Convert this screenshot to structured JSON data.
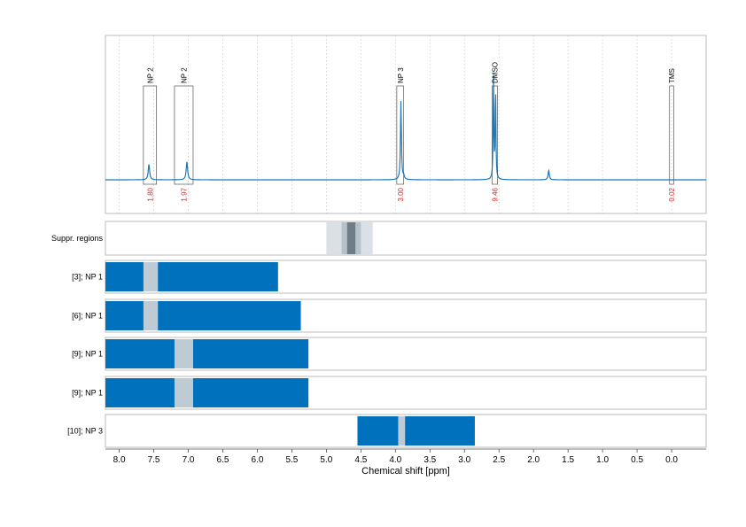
{
  "colors": {
    "spectrum": "#1f77b4",
    "bar": "#0072bd",
    "overlap": "#bfcbd4",
    "region_light": "#d9e0e6",
    "region_mid": "#b6c2ca",
    "region_dark": "#6e7d88",
    "integral_text": "#d62728",
    "frame": "#bbbbbb",
    "grid": "#cccccc"
  },
  "chart_data": {
    "type": "spectrum",
    "xlabel": "Chemical shift [ppm]",
    "xlim": [
      8.2,
      -0.5
    ],
    "x_reversed": true,
    "grid": true,
    "xticks": [
      "8.0",
      "7.5",
      "7.0",
      "6.5",
      "6.0",
      "5.5",
      "5.0",
      "4.5",
      "4.0",
      "3.5",
      "3.0",
      "2.5",
      "2.0",
      "1.5",
      "1.0",
      "0.5",
      "0.0"
    ],
    "spectrum": {
      "baseline": 0.0,
      "peaks": [
        {
          "x": 7.57,
          "height": 0.13,
          "width": 0.012
        },
        {
          "x": 7.02,
          "height": 0.15,
          "width": 0.012
        },
        {
          "x": 3.92,
          "height": 0.66,
          "width": 0.008
        },
        {
          "x": 3.88,
          "height": 0.03,
          "width": 0.01
        },
        {
          "x": 2.58,
          "height": 0.85,
          "width": 0.006
        },
        {
          "x": 2.55,
          "height": 0.8,
          "width": 0.006
        },
        {
          "x": 1.78,
          "height": 0.08,
          "width": 0.01
        }
      ]
    },
    "peak_annotations": [
      {
        "label": "NP 2",
        "from": 7.65,
        "to": 7.46,
        "integral": "1.80"
      },
      {
        "label": "NP 2",
        "from": 7.2,
        "to": 6.93,
        "integral": "1.97"
      },
      {
        "label": "NP 3",
        "from": 3.98,
        "to": 3.88,
        "integral": "3.00"
      },
      {
        "label": "DMSO",
        "from": 2.6,
        "to": 2.52,
        "integral": "9.46"
      },
      {
        "label": "TMS",
        "from": 0.03,
        "to": -0.03,
        "integral": "0.02"
      }
    ],
    "suppression": {
      "label": "Suppr. regions",
      "regions": [
        {
          "from": 5.0,
          "to": 4.33,
          "level": "light"
        },
        {
          "from": 4.78,
          "to": 4.5,
          "level": "mid"
        },
        {
          "from": 4.7,
          "to": 4.58,
          "level": "dark"
        }
      ]
    },
    "rows": [
      {
        "label": "[3]; NP 1",
        "from": 8.2,
        "to": 5.7,
        "overlap": [
          7.65,
          7.44
        ]
      },
      {
        "label": "[6]; NP 1",
        "from": 8.2,
        "to": 5.37,
        "overlap": [
          7.65,
          7.44
        ]
      },
      {
        "label": "[9]; NP 1",
        "from": 8.2,
        "to": 5.26,
        "overlap": [
          7.2,
          6.93
        ]
      },
      {
        "label": "[9]; NP 1",
        "from": 8.2,
        "to": 5.26,
        "overlap": [
          7.2,
          6.93
        ]
      },
      {
        "label": "[10]; NP 3",
        "from": 4.55,
        "to": 2.85,
        "overlap": [
          3.96,
          3.86
        ]
      }
    ]
  }
}
